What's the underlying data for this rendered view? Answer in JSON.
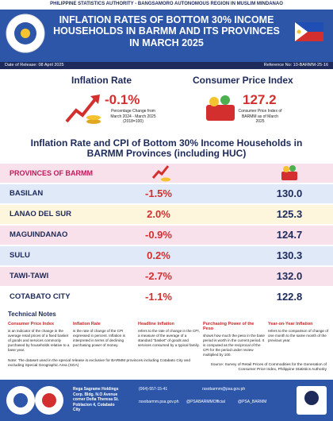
{
  "agency": "PHILIPPINE STATISTICS AUTHORITY - BANGSAMORO AUTONOMOUS REGION IN MUSLIM MINDANAO",
  "header": {
    "title": "INFLATION RATES OF BOTTOM 30% INCOME HOUSEHOLDS IN BARMM AND ITS PROVINCES IN MARCH 2025",
    "release_date": "Date of Release: 08 April 2025",
    "reference": "Reference No: 10-BARMM-25-16"
  },
  "summary": {
    "inflation": {
      "title": "Inflation Rate",
      "value": "-0.1%",
      "caption": "Percentage Change from March 2024 - March 2025 (2018=100)"
    },
    "cpi": {
      "title": "Consumer Price Index",
      "value": "127.2",
      "caption": "Consumer Price Index of BARMM as of March 2025"
    }
  },
  "table": {
    "title": "Inflation Rate and CPI of Bottom 30% Income Households in BARMM Provinces (including HUC)",
    "header": "PROVINCES OF BARMM",
    "rows": [
      [
        "BASILAN",
        "-1.5%",
        "130.0"
      ],
      [
        "LANAO DEL SUR",
        "2.0%",
        "125.3"
      ],
      [
        "MAGUINDANAO",
        "-0.9%",
        "124.7"
      ],
      [
        "SULU",
        "0.2%",
        "130.3"
      ],
      [
        "TAWI-TAWI",
        "-2.7%",
        "132.0"
      ],
      [
        "COTABATO CITY",
        "-1.1%",
        "122.8"
      ]
    ]
  },
  "notes": {
    "title": "Technical Notes",
    "items": [
      {
        "term": "Consumer Price Index",
        "text": "is an indicator of the change in the average retail prices of a fixed basket of goods and services commonly purchased by households relative to a base year."
      },
      {
        "term": "Inflation Rate",
        "text": "is the rate of change of the CPI expressed in percent. Inflation is interpreted in terms of declining purchasing power of money."
      },
      {
        "term": "Headline Inflation",
        "text": "refers to the rate of change in the CPI, a measure of the average of a standard \"basket\" of goods and services consumed by a typical family."
      },
      {
        "term": "Purchasing Power of the Peso",
        "text": "shows how much the peso in the base period is worth in the current period. It is computed as the reciprocal of the CPI for the period under review multiplied by 100."
      },
      {
        "term": "Year-on-Year Inflation",
        "text": "refers to the comparison of change of one month to the same month of the previous year."
      }
    ],
    "note": "Note: The dataset used in the special release is exclusive for BARMM provinces including Cotabato City and excluding Special Geographic Area (SGA)",
    "source": "Source: Survey of Retail Prices of Commodities for the Generation of Consumer Price Index, Philippine Statistics Authority"
  },
  "footer": {
    "address": "Rega Sagrame Holdings Corp. Bldg. N.O Avenue corner Doña Theresa St. Poblacion 4, Cotabato City",
    "phone": "(064)-557-15-41",
    "email": "rssobarmm@psa.gov.ph",
    "website": "rssobarmm.psa.gov.ph",
    "facebook": "@PSABARMMOfficial",
    "twitter": "@PSA_BARMM"
  }
}
